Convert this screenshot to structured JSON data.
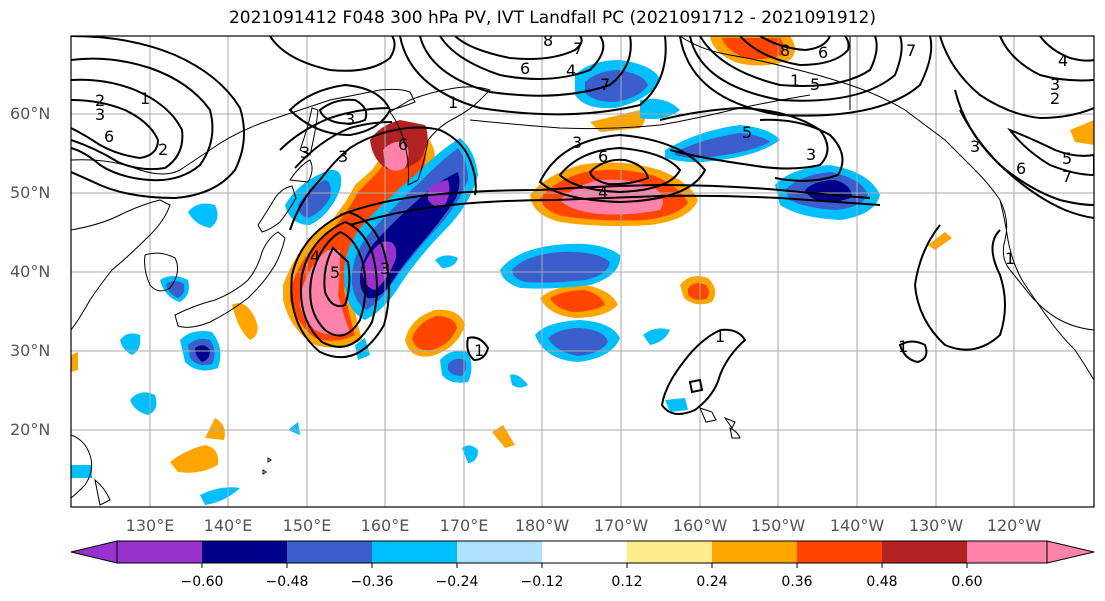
{
  "title": "2021091412 F048 300 hPa PV, IVT Landfall PC (2021091712 - 2021091912)",
  "lat_labels": [
    "60°N",
    "50°N",
    "40°N",
    "30°N",
    "20°N"
  ],
  "lon_labels": [
    "130°E",
    "140°E",
    "150°E",
    "160°E",
    "170°E",
    "180°W",
    "170°W",
    "160°W",
    "150°W",
    "140°W",
    "130°W",
    "120°W"
  ],
  "colorbar": {
    "labels": [
      "−0.60",
      "−0.48",
      "−0.36",
      "−0.24",
      "−0.12",
      "0.12",
      "0.24",
      "0.36",
      "0.48",
      "0.60"
    ],
    "colors": [
      "#9932cc",
      "#00008b",
      "#3a5fcd",
      "#00bfff",
      "#b0e2ff",
      "#ffffff",
      "#ffec8b",
      "#ffa500",
      "#ff4500",
      "#b22222",
      "#ff82ab"
    ]
  },
  "contour_labels": [
    "1",
    "2",
    "3",
    "6",
    "2",
    "3",
    "3",
    "6",
    "8",
    "7",
    "6",
    "4",
    "7",
    "8",
    "6",
    "1",
    "5",
    "7",
    "3",
    "4",
    "2",
    "3",
    "6",
    "5",
    "7",
    "4",
    "3",
    "5",
    "3",
    "6",
    "4",
    "3",
    "1",
    "1",
    "1",
    "1",
    "1",
    "5",
    "3"
  ]
}
